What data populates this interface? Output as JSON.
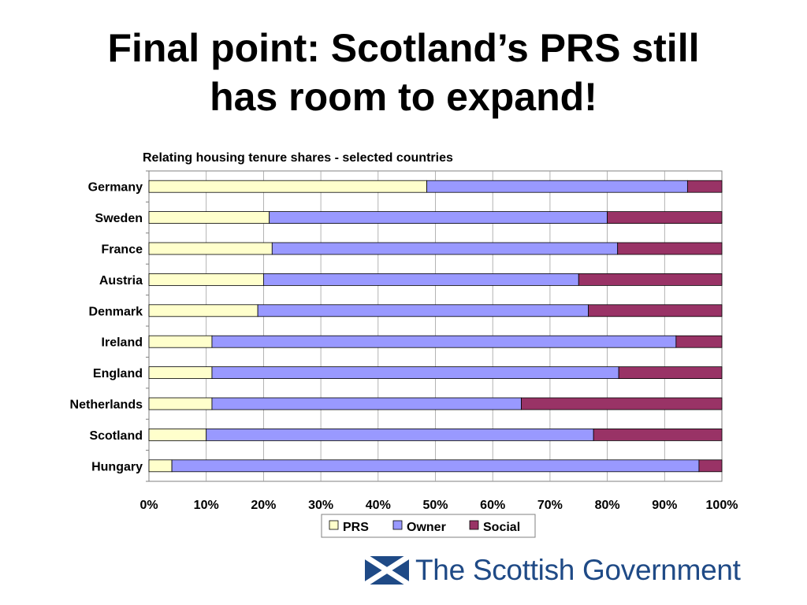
{
  "slide": {
    "title_line1": "Final point: Scotland’s PRS still",
    "title_line2": "has room to expand!"
  },
  "chart_data": {
    "type": "bar",
    "orientation": "horizontal",
    "stacked": true,
    "normalized": true,
    "title": "Relating housing tenure shares - selected countries",
    "categories": [
      "Germany",
      "Sweden",
      "France",
      "Austria",
      "Denmark",
      "Ireland",
      "England",
      "Netherlands",
      "Scotland",
      "Hungary"
    ],
    "series": [
      {
        "name": "PRS",
        "color": "#ffffcc",
        "values": [
          48.5,
          21.0,
          21.5,
          20.0,
          19.0,
          11.0,
          11.0,
          11.0,
          10.0,
          4.0
        ]
      },
      {
        "name": "Owner",
        "color": "#9999ff",
        "values": [
          45.5,
          59.0,
          60.3,
          55.0,
          57.7,
          81.0,
          71.0,
          54.0,
          67.6,
          92.0
        ]
      },
      {
        "name": "Social",
        "color": "#993366",
        "values": [
          6.0,
          20.0,
          18.2,
          25.0,
          23.3,
          8.0,
          18.0,
          35.0,
          22.4,
          4.0
        ]
      }
    ],
    "xlim": [
      0,
      100
    ],
    "xticks": [
      "0%",
      "10%",
      "20%",
      "30%",
      "40%",
      "50%",
      "60%",
      "70%",
      "80%",
      "90%",
      "100%"
    ],
    "grid": true,
    "legend_position": "bottom"
  },
  "branding": {
    "name": "The Scottish Government",
    "brand_color": "#1f4a86"
  }
}
